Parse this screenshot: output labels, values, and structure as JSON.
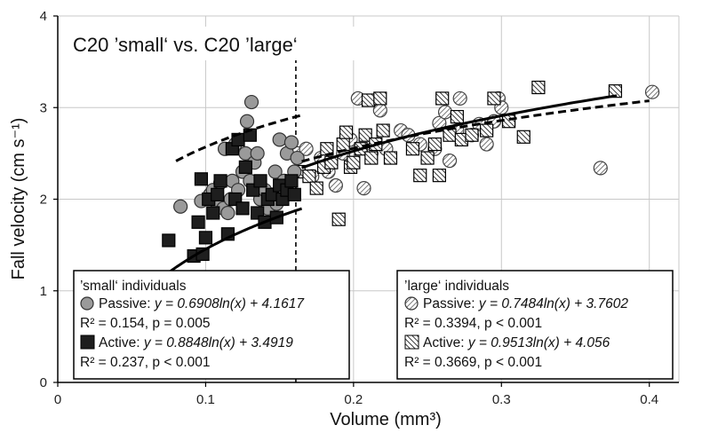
{
  "chart_data": {
    "type": "scatter",
    "title": "C20 ’small‘ vs. C20 ’large‘",
    "xlabel": "Volume (mm³)",
    "ylabel": "Fall velocity (cm s⁻¹)",
    "xlim": [
      0,
      0.42
    ],
    "ylim": [
      0,
      4
    ],
    "xticks": [
      0,
      0.1,
      0.2,
      0.3,
      0.4
    ],
    "xtick_labels": [
      "0",
      "0.1",
      "0.2",
      "0.3",
      "0.4"
    ],
    "yticks": [
      0,
      1,
      2,
      3,
      4
    ],
    "ytick_labels": [
      "0",
      "1",
      "2",
      "3",
      "4"
    ],
    "grid": true,
    "divider_x": 0.161,
    "series": [
      {
        "name": "small Passive",
        "marker": "circle-gray",
        "points": [
          [
            0.083,
            1.92
          ],
          [
            0.097,
            1.98
          ],
          [
            0.103,
            2.05
          ],
          [
            0.105,
            2.1
          ],
          [
            0.108,
            1.95
          ],
          [
            0.11,
            2.18
          ],
          [
            0.112,
            1.9
          ],
          [
            0.113,
            2.55
          ],
          [
            0.115,
            1.85
          ],
          [
            0.117,
            2.0
          ],
          [
            0.118,
            2.2
          ],
          [
            0.12,
            2.6
          ],
          [
            0.122,
            2.1
          ],
          [
            0.125,
            2.3
          ],
          [
            0.127,
            2.5
          ],
          [
            0.128,
            2.85
          ],
          [
            0.13,
            2.2
          ],
          [
            0.131,
            3.06
          ],
          [
            0.133,
            2.4
          ],
          [
            0.135,
            2.5
          ],
          [
            0.137,
            2.0
          ],
          [
            0.14,
            2.1
          ],
          [
            0.142,
            1.9
          ],
          [
            0.145,
            2.05
          ],
          [
            0.147,
            2.3
          ],
          [
            0.148,
            1.95
          ],
          [
            0.15,
            2.65
          ],
          [
            0.153,
            2.2
          ],
          [
            0.155,
            2.5
          ],
          [
            0.158,
            2.62
          ],
          [
            0.16,
            2.3
          ],
          [
            0.162,
            2.45
          ]
        ]
      },
      {
        "name": "small Active",
        "marker": "square-black",
        "points": [
          [
            0.075,
            1.55
          ],
          [
            0.092,
            1.38
          ],
          [
            0.095,
            1.75
          ],
          [
            0.097,
            2.22
          ],
          [
            0.098,
            1.4
          ],
          [
            0.1,
            1.58
          ],
          [
            0.102,
            2.0
          ],
          [
            0.105,
            1.85
          ],
          [
            0.108,
            2.05
          ],
          [
            0.11,
            2.2
          ],
          [
            0.115,
            1.62
          ],
          [
            0.118,
            2.55
          ],
          [
            0.12,
            2.0
          ],
          [
            0.122,
            2.65
          ],
          [
            0.125,
            1.9
          ],
          [
            0.127,
            2.35
          ],
          [
            0.13,
            2.7
          ],
          [
            0.132,
            2.1
          ],
          [
            0.135,
            1.85
          ],
          [
            0.137,
            2.2
          ],
          [
            0.14,
            1.75
          ],
          [
            0.142,
            2.0
          ],
          [
            0.145,
            2.05
          ],
          [
            0.148,
            1.8
          ],
          [
            0.15,
            2.15
          ],
          [
            0.152,
            2.0
          ],
          [
            0.155,
            2.1
          ],
          [
            0.158,
            2.2
          ],
          [
            0.16,
            2.05
          ]
        ]
      },
      {
        "name": "large Passive",
        "marker": "circle-hatched",
        "points": [
          [
            0.162,
            2.5
          ],
          [
            0.168,
            2.55
          ],
          [
            0.172,
            2.25
          ],
          [
            0.178,
            2.45
          ],
          [
            0.183,
            2.3
          ],
          [
            0.188,
            2.15
          ],
          [
            0.193,
            2.5
          ],
          [
            0.198,
            2.65
          ],
          [
            0.203,
            3.1
          ],
          [
            0.207,
            2.12
          ],
          [
            0.212,
            2.5
          ],
          [
            0.218,
            2.97
          ],
          [
            0.222,
            2.55
          ],
          [
            0.232,
            2.75
          ],
          [
            0.237,
            2.7
          ],
          [
            0.245,
            2.6
          ],
          [
            0.255,
            2.55
          ],
          [
            0.258,
            2.83
          ],
          [
            0.262,
            2.95
          ],
          [
            0.265,
            2.42
          ],
          [
            0.27,
            2.75
          ],
          [
            0.272,
            3.1
          ],
          [
            0.28,
            2.7
          ],
          [
            0.285,
            2.82
          ],
          [
            0.29,
            2.6
          ],
          [
            0.295,
            2.85
          ],
          [
            0.298,
            3.1
          ],
          [
            0.3,
            3.0
          ],
          [
            0.367,
            2.34
          ],
          [
            0.402,
            3.17
          ]
        ]
      },
      {
        "name": "large Active",
        "marker": "square-hatched",
        "points": [
          [
            0.163,
            2.3
          ],
          [
            0.17,
            2.25
          ],
          [
            0.175,
            2.12
          ],
          [
            0.18,
            2.35
          ],
          [
            0.182,
            2.55
          ],
          [
            0.185,
            2.4
          ],
          [
            0.19,
            1.78
          ],
          [
            0.193,
            2.6
          ],
          [
            0.195,
            2.73
          ],
          [
            0.198,
            2.35
          ],
          [
            0.2,
            2.4
          ],
          [
            0.205,
            2.55
          ],
          [
            0.208,
            2.7
          ],
          [
            0.21,
            3.08
          ],
          [
            0.212,
            2.45
          ],
          [
            0.215,
            2.6
          ],
          [
            0.218,
            3.1
          ],
          [
            0.22,
            2.75
          ],
          [
            0.225,
            2.45
          ],
          [
            0.24,
            2.55
          ],
          [
            0.245,
            2.26
          ],
          [
            0.25,
            2.45
          ],
          [
            0.255,
            2.6
          ],
          [
            0.258,
            2.26
          ],
          [
            0.26,
            3.1
          ],
          [
            0.265,
            2.7
          ],
          [
            0.27,
            2.9
          ],
          [
            0.273,
            2.65
          ],
          [
            0.28,
            2.7
          ],
          [
            0.29,
            2.75
          ],
          [
            0.295,
            3.1
          ],
          [
            0.305,
            2.85
          ],
          [
            0.315,
            2.68
          ],
          [
            0.325,
            3.22
          ],
          [
            0.377,
            3.18
          ]
        ]
      }
    ],
    "fits": [
      {
        "name": "small Passive",
        "a": 0.6908,
        "b": 4.1617,
        "style": "dashed",
        "range": [
          0.08,
          0.165
        ]
      },
      {
        "name": "small Active",
        "a": 0.8848,
        "b": 3.4919,
        "style": "solid",
        "range": [
          0.073,
          0.165
        ]
      },
      {
        "name": "large Passive",
        "a": 0.7484,
        "b": 3.7602,
        "style": "dashed",
        "range": [
          0.165,
          0.4
        ]
      },
      {
        "name": "large Active",
        "a": 0.9513,
        "b": 4.056,
        "style": "solid",
        "range": [
          0.165,
          0.378
        ]
      }
    ]
  },
  "legend_small": {
    "title": "’small‘ individuals",
    "passive_label": "Passive:",
    "passive_eq": "y = 0.6908ln(x) + 4.1617",
    "passive_stats": "R² = 0.154, p = 0.005",
    "active_label": "Active:",
    "active_eq": "y = 0.8848ln(x) + 3.4919",
    "active_stats": "R² = 0.237, p < 0.001"
  },
  "legend_large": {
    "title": "’large‘ individuals",
    "passive_label": "Passive:",
    "passive_eq": "y = 0.7484ln(x) + 3.7602",
    "passive_stats": "R² = 0.3394, p < 0.001",
    "active_label": "Active:",
    "active_eq": "y = 0.9513ln(x) + 4.056",
    "active_stats": "R² = 0.3669, p < 0.001"
  },
  "colors": {
    "passive_small_fill": "#9a9a9a",
    "active_small_fill": "#1e1e1e",
    "grid": "#c8c8c8",
    "axis": "#000000"
  }
}
